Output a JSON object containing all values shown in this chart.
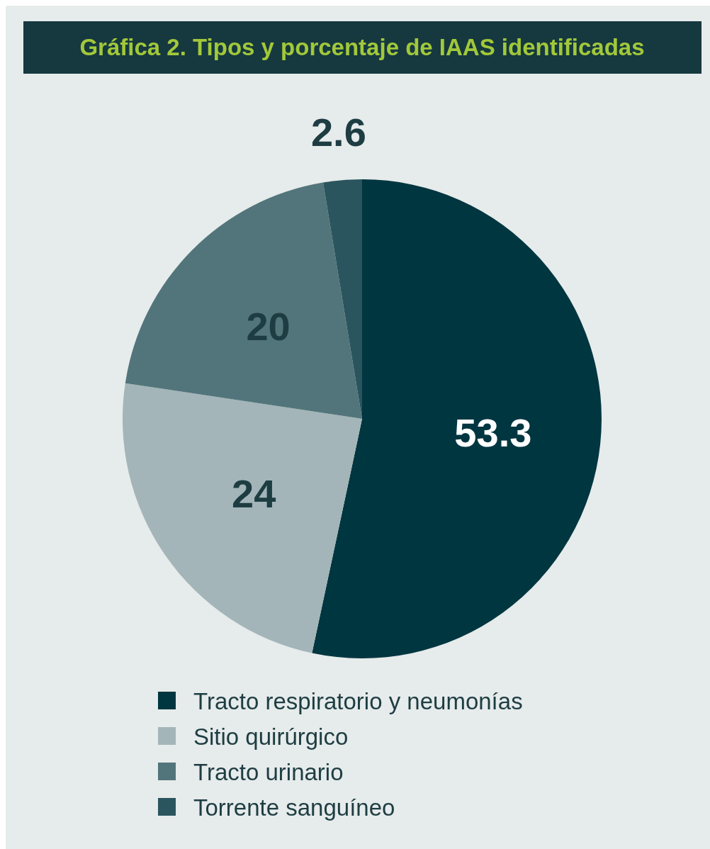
{
  "chart_data": {
    "type": "pie",
    "title": "Gráfica 2. Tipos y porcentaje de IAAS identificadas",
    "categories": [
      "Tracto respiratorio y neumonías",
      "Sitio quirúrgico",
      "Tracto urinario",
      "Torrente sanguíneo"
    ],
    "values": [
      53.3,
      24,
      20,
      2.6
    ],
    "colors": [
      "#003640",
      "#a3b5b8",
      "#52757b",
      "#2a555e"
    ],
    "data_labels": true,
    "legend": "bottom"
  }
}
